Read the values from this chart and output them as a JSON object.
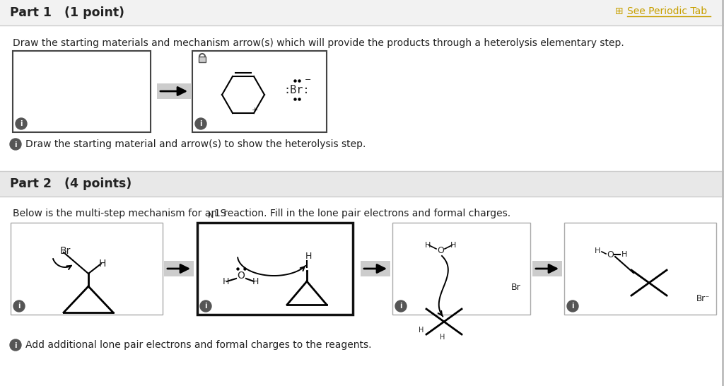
{
  "bg_color": "#ffffff",
  "header1_bg": "#f2f2f2",
  "header2_bg": "#e8e8e8",
  "part1_title": "Part 1   (1 point)",
  "part2_title": "Part 2   (4 points)",
  "periodic_tab_text": "See Periodic Tab",
  "part1_instruction": "Draw the starting materials and mechanism arrow(s) which will provide the products through a heterolysis elementary step.",
  "part1_hint": "Draw the starting material and arrow(s) to show the heterolysis step.",
  "part2_instruction_pre": "Below is the multi-step mechanism for an S",
  "part2_instruction_post": "1 reaction. Fill in the lone pair electrons and formal charges.",
  "part2_hint": "Add additional lone pair electrons and formal charges to the reagents.",
  "text_color": "#222222",
  "hint_icon_color": "#c0392b",
  "periodic_tab_color": "#c8a000",
  "arrow_gray": "#888888",
  "arrow_band_color": "#cccccc",
  "lock_color": "#555555",
  "border_dark": "#444444",
  "border_light": "#aaaaaa",
  "border_thick": "#111111"
}
